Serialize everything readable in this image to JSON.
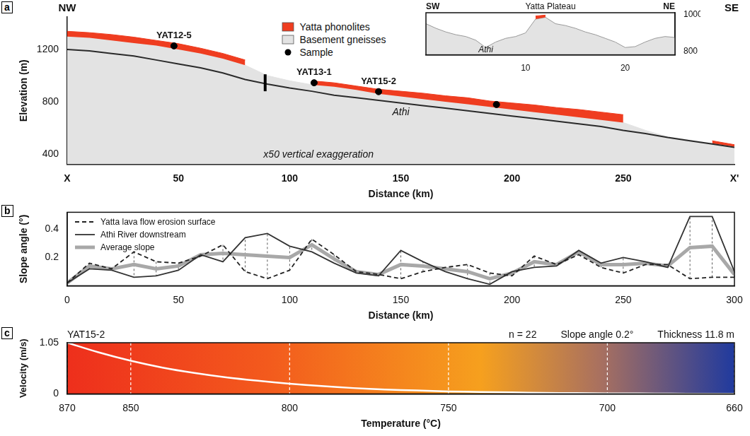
{
  "chart_data": [
    {
      "panel": "a",
      "type": "area",
      "corner_labels": [
        "NW",
        "SE"
      ],
      "x_label": "Distance (km)",
      "y_label": "Elevation (m)",
      "x": [
        0,
        10,
        20,
        30,
        40,
        50,
        60,
        70,
        80,
        90,
        100,
        110,
        120,
        130,
        140,
        150,
        160,
        170,
        180,
        190,
        200,
        210,
        220,
        230,
        240,
        250,
        260,
        270,
        280,
        290,
        300
      ],
      "series": [
        {
          "name": "Yatta phonolites",
          "color": "#ef3d20",
          "values": [
            1340,
            1330,
            1315,
            1295,
            1270,
            1245,
            1210,
            1170,
            1120,
            null,
            null,
            960,
            945,
            920,
            895,
            880,
            865,
            845,
            830,
            805,
            790,
            775,
            755,
            740,
            720,
            700,
            null,
            null,
            null,
            500,
            470
          ]
        },
        {
          "name": "Basement gneisses",
          "color": "#e3e3e3",
          "values": [
            1300,
            1290,
            1270,
            1250,
            1230,
            1200,
            1170,
            1130,
            1080,
            1000,
            960,
            930,
            915,
            890,
            860,
            840,
            820,
            800,
            780,
            760,
            740,
            720,
            700,
            680,
            660,
            640,
            580,
            530,
            505,
            480,
            455
          ]
        },
        {
          "type": "line",
          "color": "#2a2a2a",
          "values": [
            1200,
            1190,
            1170,
            1150,
            1120,
            1090,
            1060,
            1020,
            970,
            935,
            905,
            880,
            850,
            830,
            810,
            790,
            770,
            750,
            730,
            710,
            690,
            670,
            650,
            630,
            610,
            580,
            555,
            525,
            500,
            475,
            450
          ]
        }
      ],
      "samples": {
        "name": "Sample",
        "color": "#000000",
        "marker": "circle",
        "x": [
          48,
          111,
          140,
          193
        ],
        "y": [
          1228,
          945,
          877,
          778
        ],
        "labels": [
          "YAT12-5",
          "YAT13-1",
          "YAT15-2",
          null
        ]
      },
      "annotations": [
        {
          "text": "x50 vertical exaggeration",
          "x": 113,
          "y": 390
        },
        {
          "text": "Athi",
          "x": 150,
          "y": 720
        }
      ],
      "inset_location": {
        "x": 89,
        "y": [
          880,
          1010
        ]
      },
      "xlim": [
        0,
        300
      ],
      "xticks": [
        {
          "value": 0,
          "label": "X"
        },
        50,
        100,
        150,
        200,
        250,
        {
          "value": 300,
          "label": "X'"
        }
      ],
      "ylim": [
        320,
        1450
      ],
      "yticks": [
        400,
        800,
        1200
      ],
      "legend": "top",
      "grid": false
    },
    {
      "type": "area",
      "title": "Yatta Plateau",
      "corner_labels": [
        "SW",
        "NE"
      ],
      "x": [
        0,
        1,
        2,
        3,
        4,
        5,
        6,
        7,
        8,
        9,
        10,
        11,
        12,
        13,
        14,
        15,
        16,
        17,
        18,
        19,
        20,
        21,
        22,
        23,
        24,
        25
      ],
      "series": [
        {
          "color": "#ef3d20",
          "values": [
            null,
            null,
            null,
            null,
            null,
            null,
            null,
            null,
            null,
            null,
            null,
            992,
            997,
            null,
            null,
            null,
            null,
            null,
            null,
            null,
            null,
            null,
            null,
            null,
            null,
            null
          ]
        },
        {
          "color": "#e3e3e3",
          "values": [
            950,
            925,
            905,
            890,
            880,
            860,
            820,
            850,
            870,
            880,
            900,
            975,
            985,
            950,
            940,
            925,
            905,
            890,
            870,
            850,
            820,
            825,
            850,
            870,
            880,
            875
          ]
        }
      ],
      "annotations": [
        {
          "text": "Athi",
          "x": 6,
          "y": 808
        }
      ],
      "xlim": [
        0,
        25
      ],
      "xticks": [
        10,
        20
      ],
      "ylim": [
        780,
        1010
      ],
      "yticks": [
        800,
        1000
      ],
      "grid": false
    },
    {
      "panel": "b",
      "type": "line",
      "x_label": "Distance (km)",
      "y_label": "Slope angle (°)",
      "x": [
        0,
        10,
        20,
        30,
        40,
        50,
        60,
        70,
        80,
        90,
        100,
        110,
        120,
        130,
        140,
        150,
        160,
        170,
        180,
        190,
        200,
        210,
        220,
        230,
        240,
        250,
        260,
        270,
        280,
        290,
        300
      ],
      "series": [
        {
          "name": "Yatta lava flow erosion surface",
          "color": "#222222",
          "line_style": "dashed",
          "values": [
            0.02,
            0.16,
            0.12,
            0.24,
            0.17,
            0.16,
            0.21,
            0.29,
            0.1,
            0.05,
            0.11,
            0.33,
            0.22,
            0.1,
            0.08,
            0.05,
            0.1,
            0.13,
            0.15,
            0.09,
            0.07,
            0.21,
            0.15,
            0.22,
            0.13,
            0.09,
            0.15,
            0.15,
            0.05,
            0.06,
            0.06
          ]
        },
        {
          "name": "Athi River downstream",
          "color": "#333333",
          "line_style": "solid",
          "values": [
            0.02,
            0.12,
            0.11,
            0.06,
            0.07,
            0.11,
            0.22,
            0.17,
            0.34,
            0.37,
            0.28,
            0.24,
            0.16,
            0.09,
            0.07,
            0.25,
            0.17,
            0.1,
            0.05,
            0.01,
            0.1,
            0.13,
            0.14,
            0.25,
            0.16,
            0.2,
            0.17,
            0.13,
            0.49,
            0.49,
            0.1
          ]
        },
        {
          "name": "Average slope",
          "color": "#a8a8a8",
          "line_style": "thick",
          "values": [
            0.02,
            0.14,
            0.12,
            0.15,
            0.12,
            0.14,
            0.22,
            0.23,
            0.22,
            0.21,
            0.2,
            0.29,
            0.19,
            0.1,
            0.08,
            0.15,
            0.14,
            0.12,
            0.1,
            0.05,
            0.09,
            0.17,
            0.15,
            0.24,
            0.15,
            0.15,
            0.16,
            0.14,
            0.27,
            0.28,
            0.08
          ]
        }
      ],
      "xlim": [
        0,
        300
      ],
      "xticks": [
        0,
        50,
        100,
        150,
        200,
        250,
        300
      ],
      "ylim": [
        0,
        0.52
      ],
      "yticks": [
        0.2,
        0.4
      ],
      "legend": "top-left",
      "grid": false
    },
    {
      "panel": "c",
      "type": "line",
      "title": "YAT15-2",
      "annotations": [
        "n = 22",
        "Slope angle 0.2°",
        "Thickness 11.8 m"
      ],
      "x_label": "Temperature (°C)",
      "y_label": "Velocity (m/s)",
      "x": [
        870,
        860,
        850,
        840,
        830,
        820,
        810,
        800,
        790,
        780,
        770,
        760,
        750,
        740,
        730,
        720,
        710,
        700,
        690,
        680,
        670,
        660
      ],
      "series": [
        {
          "color": "#ffffff",
          "values": [
            1.05,
            0.85,
            0.68,
            0.54,
            0.43,
            0.34,
            0.27,
            0.21,
            0.16,
            0.12,
            0.09,
            0.07,
            0.05,
            0.04,
            0.03,
            0.02,
            0.015,
            0.01,
            0.008,
            0.005,
            0.003,
            0.002
          ]
        }
      ],
      "xlim": [
        870,
        660
      ],
      "xticks": [
        870,
        850,
        800,
        750,
        700,
        660
      ],
      "ylim": [
        0,
        1.05
      ],
      "yticks": [
        0,
        1.05
      ],
      "grid": "x"
    }
  ]
}
